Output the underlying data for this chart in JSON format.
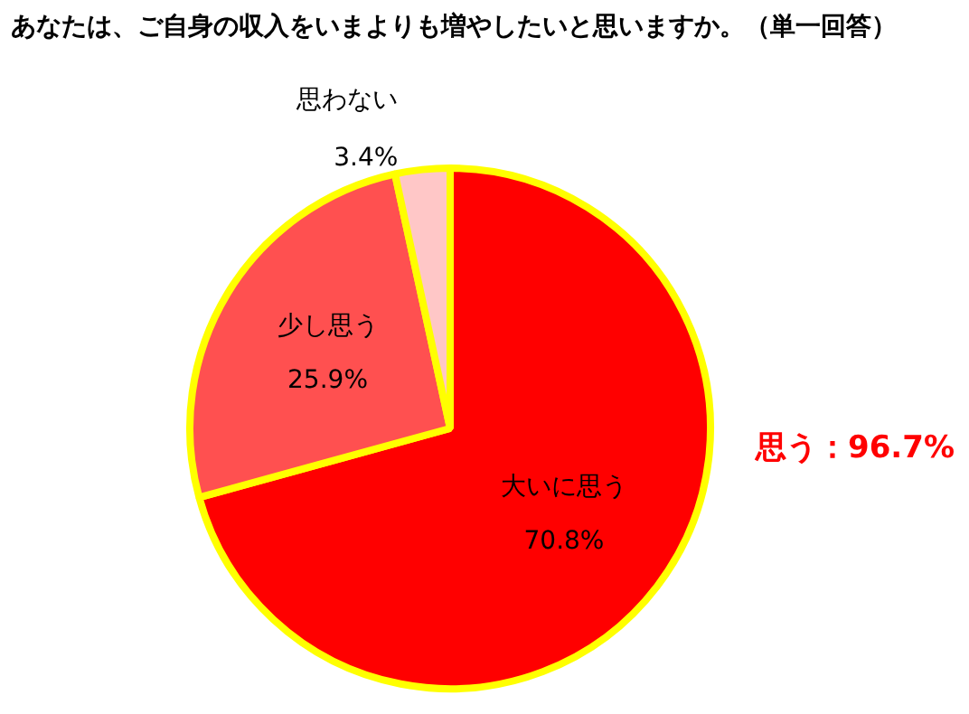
{
  "chart_data": {
    "type": "pie",
    "title": "あなたは、ご自身の収入をいまよりも増やしたいと思いますか。（単一回答）",
    "categories": [
      "大いに思う",
      "少し思う",
      "思わない"
    ],
    "values": [
      70.8,
      25.9,
      3.4
    ],
    "value_labels": [
      "70.8%",
      "25.9%",
      "3.4%"
    ],
    "colors": [
      "#ff0000",
      "#ff5050",
      "#ffc7c7"
    ],
    "annotations": [
      "思う：96.7%"
    ],
    "legend": false
  }
}
